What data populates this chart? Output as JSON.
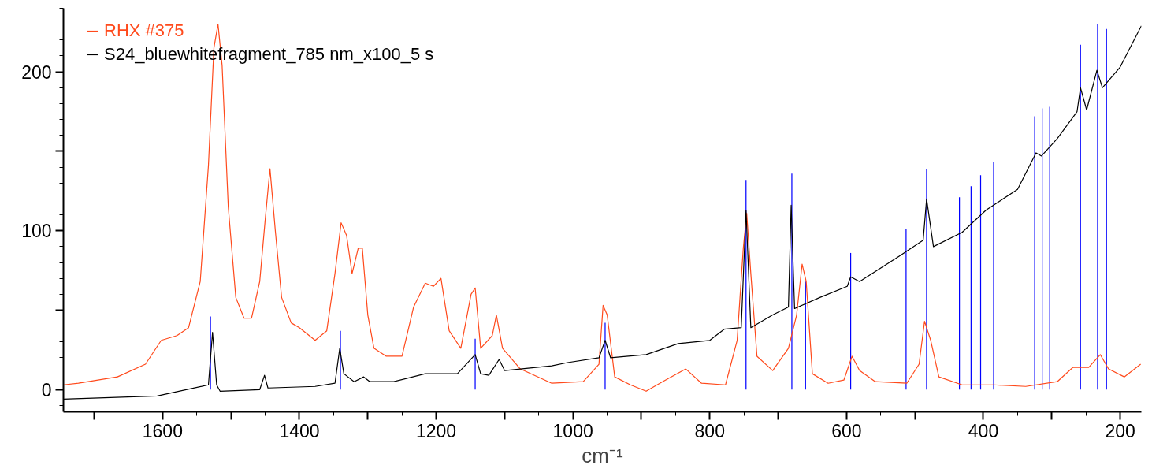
{
  "chart_data": {
    "type": "line",
    "xlabel": "cm⁻¹",
    "xlim": [
      1745,
      169
    ],
    "ylim": [
      -14,
      240
    ],
    "xticks": [
      {
        "value": 1700,
        "label": null
      },
      1600,
      {
        "value": 1500,
        "label": null
      },
      1400,
      {
        "value": 1300,
        "label": null
      },
      1200,
      {
        "value": 1100,
        "label": null
      },
      1000,
      {
        "value": 900,
        "label": null
      },
      800,
      {
        "value": 700,
        "label": null
      },
      600,
      {
        "value": 500,
        "label": null
      },
      400,
      {
        "value": 300,
        "label": null
      },
      200
    ],
    "yticks": [
      0,
      {
        "value": 50,
        "label": null
      },
      100,
      {
        "value": 150,
        "label": null
      },
      200
    ],
    "grid": false,
    "legend": "top left",
    "line_style": "solid",
    "marker": "none",
    "series": [
      {
        "name": "RHX #375",
        "color": "#ff4a1c",
        "x": [
          1745,
          1723,
          1666,
          1625,
          1602,
          1579,
          1562,
          1545,
          1533,
          1525,
          1519,
          1513,
          1504,
          1493,
          1481,
          1470,
          1458,
          1450,
          1443,
          1435,
          1426,
          1412,
          1400,
          1377,
          1360,
          1348,
          1339,
          1331,
          1323,
          1314,
          1308,
          1300,
          1291,
          1273,
          1250,
          1233,
          1216,
          1204,
          1193,
          1181,
          1164,
          1149,
          1143,
          1135,
          1118,
          1112,
          1103,
          1077,
          1031,
          985,
          962,
          956,
          950,
          939,
          916,
          893,
          869,
          835,
          812,
          777,
          760,
          751,
          746,
          740,
          731,
          708,
          685,
          673,
          665,
          659,
          650,
          627,
          604,
          592,
          581,
          558,
          512,
          494,
          486,
          477,
          465,
          431,
          385,
          338,
          292,
          269,
          246,
          229,
          217,
          194,
          170
        ],
        "values": [
          3,
          4,
          8,
          16,
          31,
          34,
          39,
          68,
          141,
          215,
          230,
          204,
          115,
          58,
          45,
          45,
          68,
          107,
          139,
          99,
          58,
          42,
          39,
          31,
          37,
          73,
          105,
          97,
          73,
          89,
          89,
          47,
          26,
          21,
          21,
          52,
          67,
          65,
          70,
          37,
          26,
          60,
          64,
          26,
          34,
          47,
          26,
          13,
          4,
          5,
          16,
          53,
          47,
          8,
          3,
          -1,
          5,
          13,
          4,
          3,
          31,
          89,
          111,
          73,
          21,
          12,
          26,
          47,
          79,
          68,
          10,
          4,
          6,
          21,
          12,
          5,
          4,
          16,
          43,
          31,
          8,
          3,
          3,
          2,
          5,
          14,
          14,
          22,
          13,
          8,
          16
        ]
      },
      {
        "name": "S24_bluewhitefragment_785 nm_x100_5 s",
        "color": "#000000",
        "x": [
          1745,
          1608,
          1533,
          1527,
          1521,
          1516,
          1458,
          1451,
          1446,
          1377,
          1348,
          1341,
          1335,
          1320,
          1306,
          1297,
          1262,
          1216,
          1169,
          1143,
          1135,
          1123,
          1108,
          1100,
          1031,
          1008,
          962,
          953,
          945,
          893,
          846,
          800,
          779,
          754,
          747,
          740,
          708,
          685,
          681,
          676,
          639,
          599,
          594,
          581,
          523,
          488,
          483,
          473,
          431,
          396,
          350,
          323,
          315,
          292,
          263,
          258,
          249,
          234,
          226,
          200,
          169
        ],
        "values": [
          -6,
          -4,
          3,
          36,
          3,
          -1,
          0,
          9,
          1,
          2,
          4,
          26,
          10,
          5,
          8,
          5,
          5,
          10,
          10,
          22,
          10,
          9,
          19,
          12,
          15,
          17,
          20,
          31,
          20,
          22,
          29,
          31,
          38,
          39,
          113,
          39,
          47,
          52,
          116,
          51,
          58,
          65,
          71,
          68,
          84,
          94,
          120,
          90,
          99,
          113,
          126,
          149,
          147,
          158,
          175,
          190,
          176,
          201,
          190,
          203,
          229
        ]
      },
      {
        "type": "bar",
        "color": "#0000ff",
        "x": [
          1530,
          1340,
          1143,
          953,
          747,
          680,
          660,
          594,
          513,
          483,
          435,
          418,
          404,
          385,
          325,
          314,
          303,
          258,
          233,
          220
        ],
        "values": [
          46,
          37,
          32,
          42,
          132,
          136,
          68,
          86,
          101,
          139,
          121,
          128,
          135,
          143,
          172,
          177,
          178,
          217,
          230,
          227
        ]
      }
    ]
  }
}
